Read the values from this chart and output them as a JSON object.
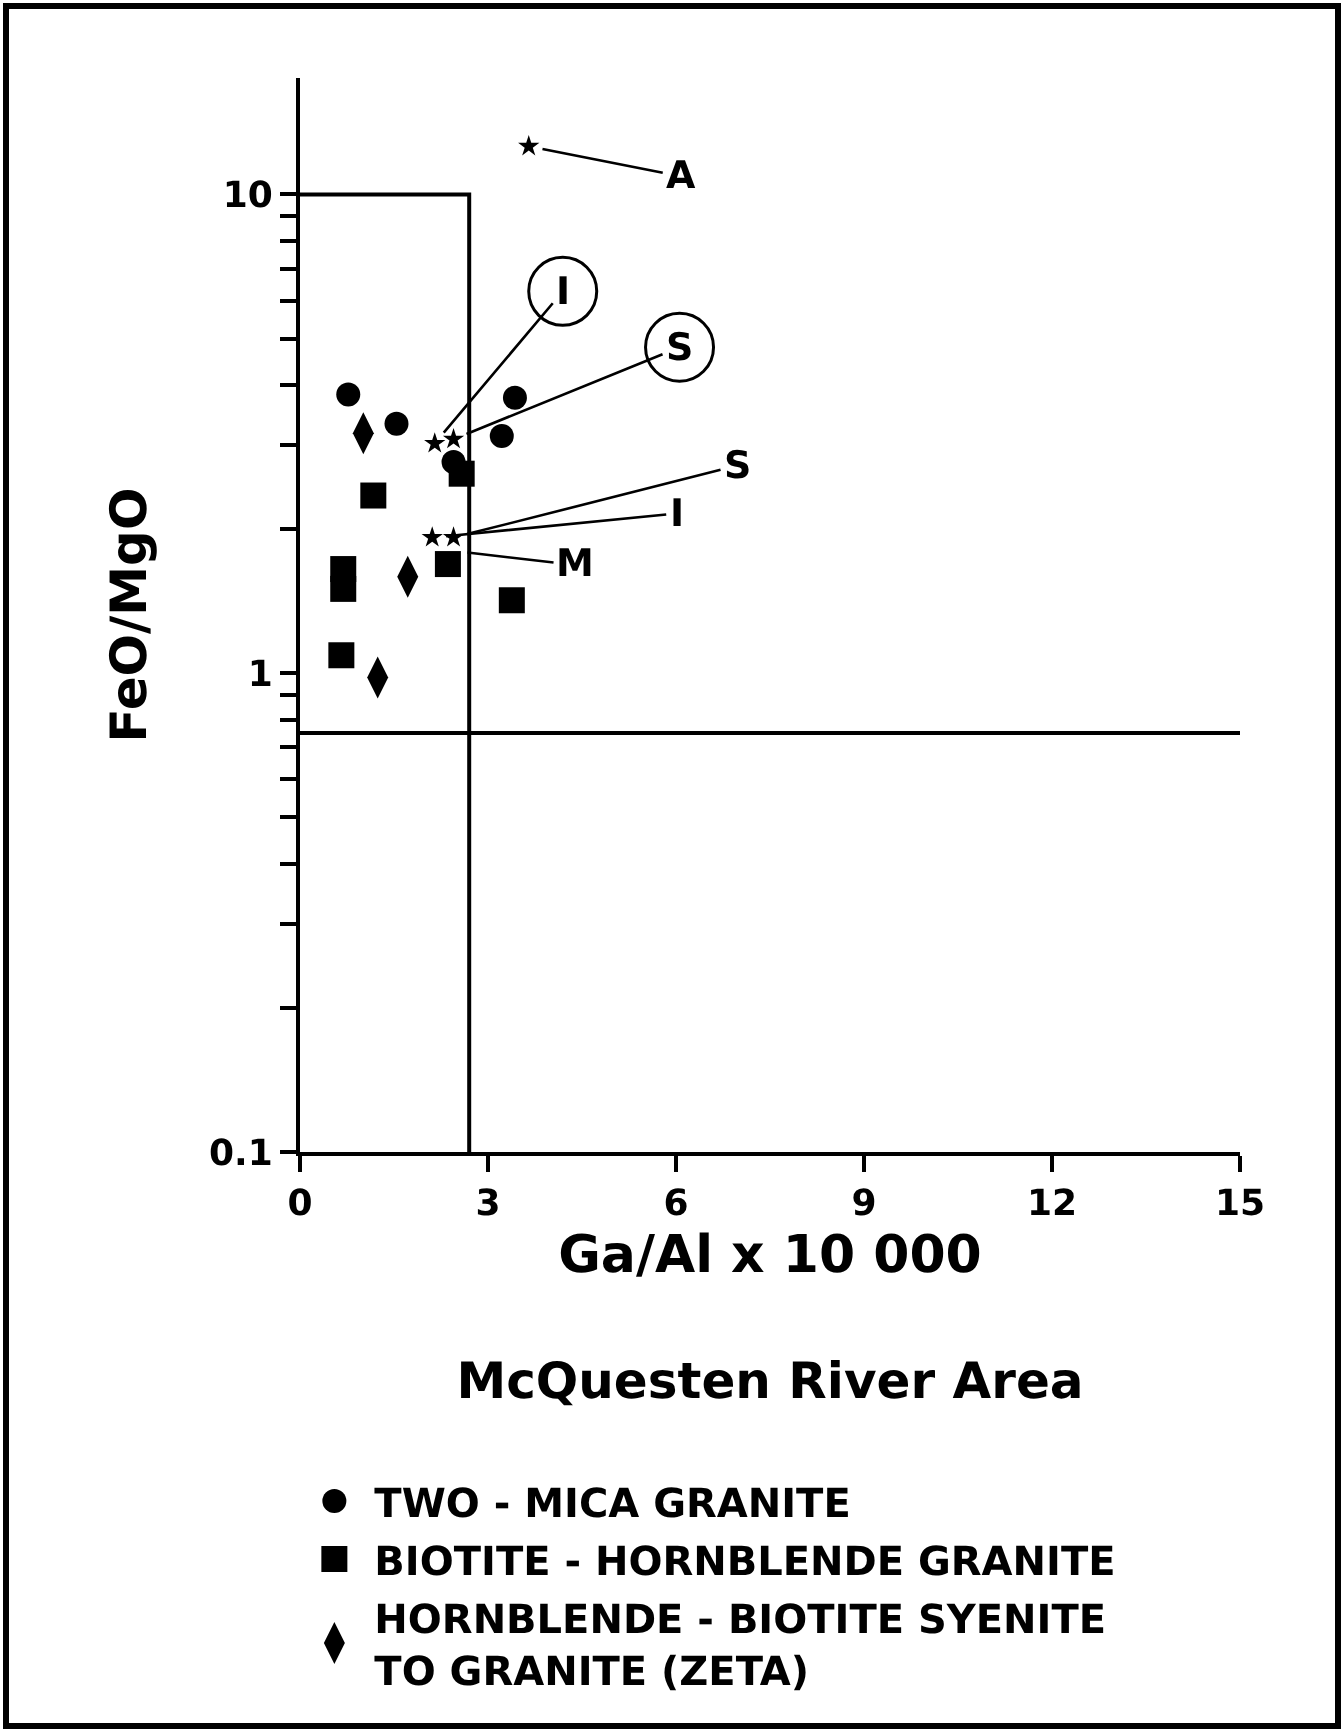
{
  "chart_data": {
    "type": "scatter",
    "title": "McQuesten River Area",
    "xlabel": "Ga/Al x 10 000",
    "ylabel": "FeO/MgO",
    "log": "y",
    "xlim": [
      0,
      15
    ],
    "ylim": [
      0.1,
      17.5
    ],
    "xticks": [
      0,
      3,
      6,
      9,
      12,
      15
    ],
    "yticks": [
      0.1,
      {
        "value": 0.2,
        "label": null
      },
      {
        "value": 0.3,
        "label": null
      },
      {
        "value": 0.4,
        "label": null
      },
      {
        "value": 0.5,
        "label": null
      },
      {
        "value": 0.6,
        "label": null
      },
      {
        "value": 0.7,
        "label": null
      },
      {
        "value": 0.8,
        "label": null
      },
      {
        "value": 0.9,
        "label": null
      },
      1,
      {
        "value": 2,
        "label": null
      },
      {
        "value": 3,
        "label": null
      },
      {
        "value": 4,
        "label": null
      },
      {
        "value": 5,
        "label": null
      },
      {
        "value": 6,
        "label": null
      },
      {
        "value": 7,
        "label": null
      },
      {
        "value": 8,
        "label": null
      },
      {
        "value": 9,
        "label": null
      },
      10
    ],
    "legend": "bottom",
    "series": [
      {
        "name": "TWO - MICA GRANITE",
        "color": "#000000",
        "marker": "circle",
        "x": [
          0.77,
          1.54,
          2.45,
          3.22,
          3.43
        ],
        "values": [
          3.82,
          3.32,
          2.76,
          3.13,
          3.76
        ]
      },
      {
        "name": "BIOTITE - HORNBLENDE GRANITE",
        "color": "#000000",
        "marker": "square",
        "x": [
          1.17,
          2.58,
          0.69,
          0.69,
          2.36,
          3.38,
          0.66
        ],
        "values": [
          2.35,
          2.61,
          1.65,
          1.5,
          1.69,
          1.42,
          1.09
        ]
      },
      {
        "name": "HORNBLENDE - BIOTITE SYENITE TO GRANITE (ZETA)",
        "color": "#000000",
        "marker": "diamond",
        "x": [
          1.01,
          1.72,
          1.24
        ],
        "values": [
          3.17,
          1.59,
          0.98
        ]
      },
      {
        "color": "#000000",
        "marker": "star",
        "x": [
          3.65,
          2.15,
          2.45,
          2.45,
          2.11
        ],
        "values": [
          12.6,
          3.02,
          3.08,
          1.92,
          1.92
        ]
      },
      {
        "type": "line",
        "color": "#000000",
        "marker": "none",
        "x": [
          0,
          2.7,
          2.7
        ],
        "values": [
          10,
          10,
          0.1
        ]
      }
    ],
    "ref_lines": [
      {
        "axis": "y",
        "value": 0.75,
        "color": "#000000"
      }
    ],
    "annotations": [
      {
        "text": "A",
        "x": 3.65,
        "y": 12.6
      },
      {
        "text": "I",
        "x": 2.15,
        "y": 3.02
      },
      {
        "text": "S",
        "x": 2.45,
        "y": 3.08
      },
      {
        "text": "S",
        "x": 2.45,
        "y": 1.92
      },
      {
        "text": "I",
        "x": 2.11,
        "y": 1.92
      },
      {
        "text": "M",
        "x": 2.45,
        "y": 1.8
      }
    ]
  }
}
